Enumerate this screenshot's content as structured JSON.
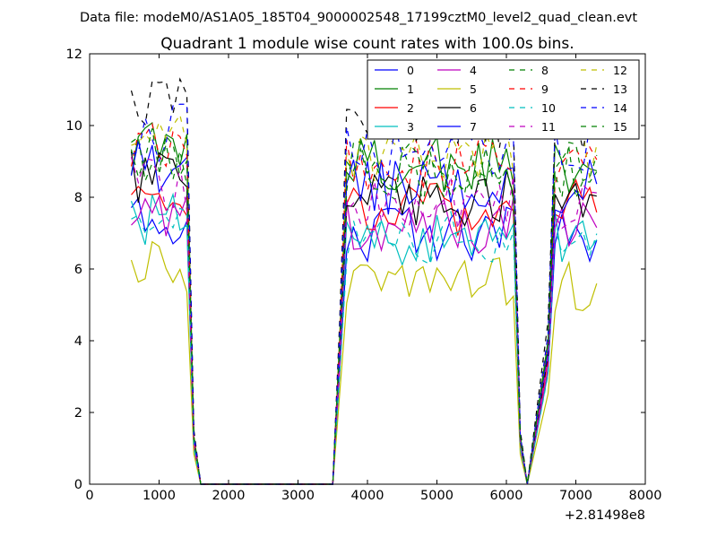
{
  "chart_data": {
    "type": "line",
    "suptitle": "Data file: modeM0/AS1A05_185T04_9000002548_17199cztM0_level2_quad_clean.evt",
    "title": "Quadrant 1 module wise count rates with 100.0s bins.",
    "xlabel": "",
    "ylabel": "",
    "x_offset_label": "+2.81498e8",
    "xlim": [
      0,
      8000
    ],
    "ylim": [
      0,
      12
    ],
    "x_ticks": [
      "0",
      "1000",
      "2000",
      "3000",
      "4000",
      "5000",
      "6000",
      "7000",
      "8000"
    ],
    "y_ticks": [
      "0",
      "2",
      "4",
      "6",
      "8",
      "10",
      "12"
    ],
    "grid": false,
    "legend_position": "top-right",
    "bin_width": 100.0,
    "segments": [
      {
        "start": 600,
        "stop": 1400,
        "fall": [
          1500,
          1600
        ],
        "lead": []
      },
      {
        "start": 3700,
        "stop": 6100,
        "fall": [
          6200,
          6300
        ],
        "lead": [
          3500,
          3600
        ]
      },
      {
        "start": 6700,
        "stop": 7300,
        "fall": [],
        "lead": [
          6600
        ]
      }
    ],
    "series": [
      {
        "name": "0",
        "color": "#0000ff",
        "style": "solid",
        "level": 7.0
      },
      {
        "name": "1",
        "color": "#008000",
        "style": "solid",
        "level": 8.9
      },
      {
        "name": "2",
        "color": "#ff0000",
        "style": "solid",
        "level": 7.7
      },
      {
        "name": "3",
        "color": "#00bfbf",
        "style": "solid",
        "level": 6.9
      },
      {
        "name": "4",
        "color": "#bf00bf",
        "style": "solid",
        "level": 7.2
      },
      {
        "name": "5",
        "color": "#bfbf00",
        "style": "solid",
        "level": 5.6
      },
      {
        "name": "6",
        "color": "#000000",
        "style": "solid",
        "level": 8.0
      },
      {
        "name": "7",
        "color": "#0000ff",
        "style": "solid",
        "level": 8.3
      },
      {
        "name": "8",
        "color": "#008000",
        "style": "dashed",
        "level": 8.6
      },
      {
        "name": "9",
        "color": "#ff0000",
        "style": "dashed",
        "level": 8.9
      },
      {
        "name": "10",
        "color": "#00bfbf",
        "style": "dashed",
        "level": 6.8
      },
      {
        "name": "11",
        "color": "#bf00bf",
        "style": "dashed",
        "level": 7.9
      },
      {
        "name": "12",
        "color": "#bfbf00",
        "style": "dashed",
        "level": 9.2
      },
      {
        "name": "13",
        "color": "#000000",
        "style": "dashed",
        "level": 10.1
      },
      {
        "name": "14",
        "color": "#0000ff",
        "style": "dashed",
        "level": 9.3
      },
      {
        "name": "15",
        "color": "#008000",
        "style": "dashed",
        "level": 8.8
      }
    ]
  }
}
